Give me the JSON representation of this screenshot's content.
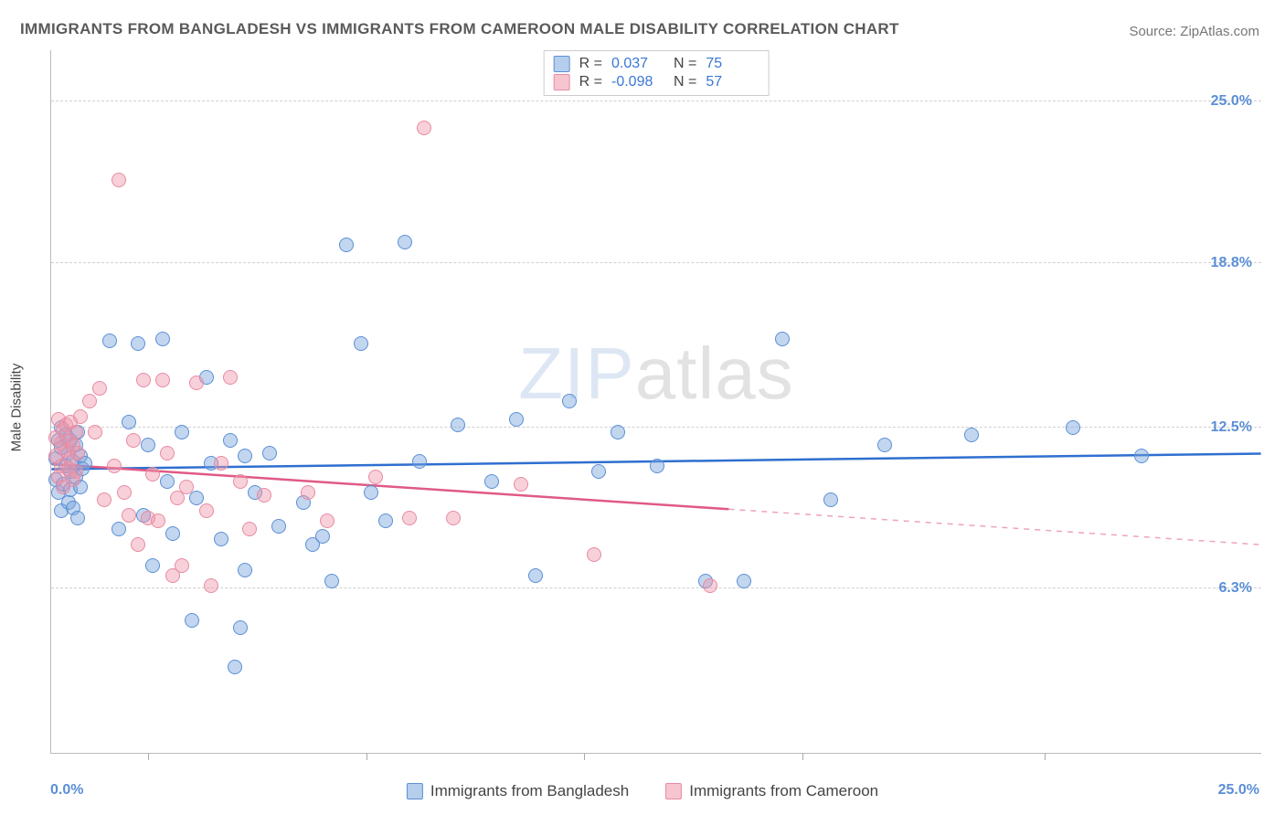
{
  "title": "IMMIGRANTS FROM BANGLADESH VS IMMIGRANTS FROM CAMEROON MALE DISABILITY CORRELATION CHART",
  "source": "Source: ZipAtlas.com",
  "yaxis_label": "Male Disability",
  "watermark_bold": "ZIP",
  "watermark_thin": "atlas",
  "xlim": [
    0.0,
    25.0
  ],
  "ylim": [
    0.0,
    27.0
  ],
  "gridlines": [
    6.3,
    12.5,
    18.8,
    25.0
  ],
  "ytick_labels": [
    "6.3%",
    "12.5%",
    "18.8%",
    "25.0%"
  ],
  "xticks": [
    2.0,
    6.5,
    11.0,
    15.5,
    20.5
  ],
  "xaxis_min_label": "0.0%",
  "xaxis_max_label": "25.0%",
  "colors": {
    "blue_fill": "rgba(120,165,220,0.45)",
    "blue_stroke": "#5b8fd6",
    "blue_line": "#2f6fd0",
    "pink_fill": "rgba(240,150,170,0.45)",
    "pink_stroke": "#e88aa3",
    "pink_line": "#e05a85",
    "grid": "#d0d0d0",
    "axis": "#bbbbbb",
    "tick_text": "#5b8fd6"
  },
  "series": [
    {
      "id": "bangladesh",
      "label": "Immigrants from Bangladesh",
      "class": "blue",
      "R_label": "R =",
      "R_value": "0.037",
      "N_label": "N =",
      "N_value": "75",
      "trend": {
        "y_at_x0": 10.9,
        "y_at_x25": 11.5,
        "solid_to_x": 25.0
      },
      "points": [
        [
          0.1,
          10.5
        ],
        [
          0.1,
          11.3
        ],
        [
          0.15,
          12.0
        ],
        [
          0.15,
          10.0
        ],
        [
          0.2,
          11.7
        ],
        [
          0.2,
          9.3
        ],
        [
          0.2,
          12.5
        ],
        [
          0.25,
          10.3
        ],
        [
          0.3,
          11.0
        ],
        [
          0.3,
          12.2
        ],
        [
          0.35,
          9.6
        ],
        [
          0.35,
          11.5
        ],
        [
          0.4,
          10.1
        ],
        [
          0.4,
          10.8
        ],
        [
          0.4,
          12.0
        ],
        [
          0.45,
          11.2
        ],
        [
          0.45,
          9.4
        ],
        [
          0.5,
          10.6
        ],
        [
          0.5,
          11.8
        ],
        [
          0.55,
          12.3
        ],
        [
          0.55,
          9.0
        ],
        [
          0.6,
          10.2
        ],
        [
          0.6,
          11.4
        ],
        [
          0.65,
          10.9
        ],
        [
          0.7,
          11.1
        ],
        [
          1.2,
          15.8
        ],
        [
          1.4,
          8.6
        ],
        [
          1.6,
          12.7
        ],
        [
          1.8,
          15.7
        ],
        [
          1.9,
          9.1
        ],
        [
          2.0,
          11.8
        ],
        [
          2.1,
          7.2
        ],
        [
          2.3,
          15.9
        ],
        [
          2.4,
          10.4
        ],
        [
          2.5,
          8.4
        ],
        [
          2.7,
          12.3
        ],
        [
          2.9,
          5.1
        ],
        [
          3.0,
          9.8
        ],
        [
          3.2,
          14.4
        ],
        [
          3.3,
          11.1
        ],
        [
          3.5,
          8.2
        ],
        [
          3.7,
          12.0
        ],
        [
          3.8,
          3.3
        ],
        [
          3.9,
          4.8
        ],
        [
          4.0,
          7.0
        ],
        [
          4.0,
          11.4
        ],
        [
          4.2,
          10.0
        ],
        [
          4.5,
          11.5
        ],
        [
          4.7,
          8.7
        ],
        [
          5.2,
          9.6
        ],
        [
          5.4,
          8.0
        ],
        [
          5.6,
          8.3
        ],
        [
          5.8,
          6.6
        ],
        [
          6.1,
          19.5
        ],
        [
          6.4,
          15.7
        ],
        [
          6.6,
          10.0
        ],
        [
          6.9,
          8.9
        ],
        [
          7.3,
          19.6
        ],
        [
          7.6,
          11.2
        ],
        [
          8.4,
          12.6
        ],
        [
          9.1,
          10.4
        ],
        [
          9.6,
          12.8
        ],
        [
          10.0,
          6.8
        ],
        [
          10.7,
          13.5
        ],
        [
          11.3,
          10.8
        ],
        [
          11.7,
          12.3
        ],
        [
          12.5,
          11.0
        ],
        [
          13.5,
          6.6
        ],
        [
          14.3,
          6.6
        ],
        [
          15.1,
          15.9
        ],
        [
          16.1,
          9.7
        ],
        [
          17.2,
          11.8
        ],
        [
          19.0,
          12.2
        ],
        [
          21.1,
          12.5
        ],
        [
          22.5,
          11.4
        ]
      ]
    },
    {
      "id": "cameroon",
      "label": "Immigrants from Cameroon",
      "class": "pink",
      "R_label": "R =",
      "R_value": "-0.098",
      "N_label": "N =",
      "N_value": "57",
      "trend": {
        "y_at_x0": 11.1,
        "y_at_x25": 8.0,
        "solid_to_x": 14.0
      },
      "points": [
        [
          0.1,
          11.4
        ],
        [
          0.1,
          12.1
        ],
        [
          0.15,
          10.6
        ],
        [
          0.15,
          12.8
        ],
        [
          0.2,
          11.0
        ],
        [
          0.2,
          11.9
        ],
        [
          0.25,
          12.4
        ],
        [
          0.25,
          10.2
        ],
        [
          0.3,
          11.6
        ],
        [
          0.3,
          12.6
        ],
        [
          0.35,
          10.9
        ],
        [
          0.35,
          12.0
        ],
        [
          0.4,
          11.3
        ],
        [
          0.4,
          12.7
        ],
        [
          0.45,
          10.5
        ],
        [
          0.45,
          11.8
        ],
        [
          0.5,
          12.3
        ],
        [
          0.5,
          10.8
        ],
        [
          0.55,
          11.5
        ],
        [
          0.6,
          12.9
        ],
        [
          0.8,
          13.5
        ],
        [
          0.9,
          12.3
        ],
        [
          1.0,
          14.0
        ],
        [
          1.1,
          9.7
        ],
        [
          1.3,
          11.0
        ],
        [
          1.4,
          22.0
        ],
        [
          1.5,
          10.0
        ],
        [
          1.6,
          9.1
        ],
        [
          1.7,
          12.0
        ],
        [
          1.8,
          8.0
        ],
        [
          1.9,
          14.3
        ],
        [
          2.0,
          9.0
        ],
        [
          2.1,
          10.7
        ],
        [
          2.2,
          8.9
        ],
        [
          2.3,
          14.3
        ],
        [
          2.4,
          11.5
        ],
        [
          2.5,
          6.8
        ],
        [
          2.6,
          9.8
        ],
        [
          2.7,
          7.2
        ],
        [
          2.8,
          10.2
        ],
        [
          3.0,
          14.2
        ],
        [
          3.2,
          9.3
        ],
        [
          3.3,
          6.4
        ],
        [
          3.5,
          11.1
        ],
        [
          3.7,
          14.4
        ],
        [
          3.9,
          10.4
        ],
        [
          4.1,
          8.6
        ],
        [
          4.4,
          9.9
        ],
        [
          5.3,
          10.0
        ],
        [
          5.7,
          8.9
        ],
        [
          6.7,
          10.6
        ],
        [
          7.4,
          9.0
        ],
        [
          7.7,
          24.0
        ],
        [
          8.3,
          9.0
        ],
        [
          9.7,
          10.3
        ],
        [
          11.2,
          7.6
        ],
        [
          13.6,
          6.4
        ]
      ]
    }
  ]
}
